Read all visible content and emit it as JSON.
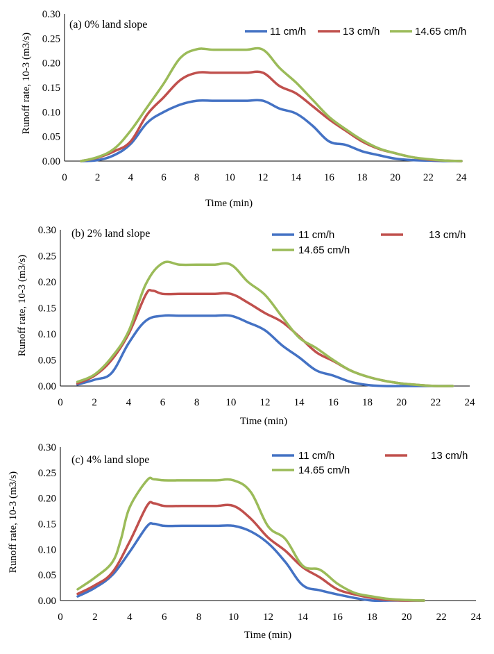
{
  "chart_data": [
    {
      "type": "line",
      "title": "(a) 0% land slope",
      "xlabel": "Time (min)",
      "ylabel": "Runoff rate, 10-3 (m3/s)",
      "xlim": [
        0,
        24
      ],
      "ylim": [
        0,
        0.3
      ],
      "x_ticks": [
        "0",
        "2",
        "4",
        "6",
        "8",
        "10",
        "12",
        "14",
        "16",
        "18",
        "20",
        "22",
        "24"
      ],
      "y_ticks": [
        "0.00",
        "0.05",
        "0.10",
        "0.15",
        "0.20",
        "0.25",
        "0.30"
      ],
      "x_tick_values": [
        0,
        2,
        4,
        6,
        8,
        10,
        12,
        14,
        16,
        18,
        20,
        22,
        24
      ],
      "y_tick_values": [
        0,
        0.05,
        0.1,
        0.15,
        0.2,
        0.25,
        0.3
      ],
      "series": [
        {
          "name": "11 cm/h",
          "color": "#4472C4",
          "x": [
            1,
            2,
            3,
            4,
            5,
            6,
            7,
            8,
            9,
            10,
            11,
            12,
            13,
            14,
            15,
            16,
            17,
            18,
            19,
            20,
            21,
            22,
            23,
            24
          ],
          "values": [
            0.0,
            0.002,
            0.012,
            0.035,
            0.078,
            0.1,
            0.115,
            0.123,
            0.123,
            0.123,
            0.123,
            0.123,
            0.107,
            0.097,
            0.072,
            0.04,
            0.033,
            0.02,
            0.012,
            0.005,
            0.002,
            0.001,
            0.0,
            0.0
          ]
        },
        {
          "name": "13 cm/h",
          "color": "#C0504D",
          "x": [
            1,
            2,
            3,
            4,
            5,
            6,
            7,
            8,
            9,
            10,
            11,
            12,
            13,
            14,
            15,
            16,
            17,
            18,
            19,
            20,
            21,
            22,
            23,
            24
          ],
          "values": [
            0.0,
            0.007,
            0.02,
            0.04,
            0.095,
            0.13,
            0.165,
            0.18,
            0.18,
            0.18,
            0.18,
            0.18,
            0.153,
            0.138,
            0.112,
            0.085,
            0.062,
            0.04,
            0.025,
            0.016,
            0.008,
            0.003,
            0.001,
            0.0
          ]
        },
        {
          "name": "14.65 cm/h",
          "color": "#9BBB59",
          "x": [
            1,
            2,
            3,
            4,
            5,
            6,
            7,
            8,
            9,
            10,
            11,
            12,
            13,
            14,
            15,
            16,
            17,
            18,
            19,
            20,
            21,
            22,
            23,
            24
          ],
          "values": [
            0.0,
            0.008,
            0.025,
            0.062,
            0.11,
            0.158,
            0.21,
            0.228,
            0.227,
            0.227,
            0.227,
            0.227,
            0.19,
            0.16,
            0.125,
            0.09,
            0.065,
            0.043,
            0.026,
            0.016,
            0.008,
            0.004,
            0.001,
            0.0
          ]
        }
      ]
    },
    {
      "type": "line",
      "title": "(b) 2% land slope",
      "xlabel": "Time (min)",
      "ylabel": "Runoff rate, 10-3 (m3/s)",
      "xlim": [
        0,
        24
      ],
      "ylim": [
        0,
        0.3
      ],
      "x_ticks": [
        "0",
        "2",
        "4",
        "6",
        "8",
        "10",
        "12",
        "14",
        "16",
        "18",
        "20",
        "22",
        "24"
      ],
      "y_ticks": [
        "0.00",
        "0.05",
        "0.10",
        "0.15",
        "0.20",
        "0.25",
        "0.30"
      ],
      "x_tick_values": [
        0,
        2,
        4,
        6,
        8,
        10,
        12,
        14,
        16,
        18,
        20,
        22,
        24
      ],
      "y_tick_values": [
        0,
        0.05,
        0.1,
        0.15,
        0.2,
        0.25,
        0.3
      ],
      "series": [
        {
          "name": "11 cm/h",
          "color": "#4472C4",
          "x": [
            1,
            2,
            3,
            4,
            5,
            6,
            7,
            8,
            9,
            10,
            11,
            12,
            13,
            14,
            15,
            16,
            17,
            18,
            19,
            20,
            21,
            22,
            23
          ],
          "values": [
            0.003,
            0.012,
            0.025,
            0.082,
            0.125,
            0.135,
            0.135,
            0.135,
            0.135,
            0.135,
            0.122,
            0.107,
            0.078,
            0.055,
            0.03,
            0.02,
            0.008,
            0.002,
            0.0,
            0.0,
            0.0,
            0.0,
            0.0
          ]
        },
        {
          "name": "13 cm/h",
          "color": "#C0504D",
          "x": [
            1,
            2,
            3,
            4,
            5,
            5.4,
            6,
            7,
            8,
            9,
            10,
            11,
            12,
            13,
            14,
            15,
            16,
            17,
            18,
            19,
            20,
            21,
            22,
            23
          ],
          "values": [
            0.005,
            0.02,
            0.05,
            0.1,
            0.175,
            0.183,
            0.177,
            0.177,
            0.177,
            0.177,
            0.177,
            0.16,
            0.14,
            0.123,
            0.095,
            0.065,
            0.048,
            0.03,
            0.018,
            0.01,
            0.005,
            0.002,
            0.0,
            0.0
          ]
        },
        {
          "name": "14.65 cm/h",
          "color": "#9BBB59",
          "x": [
            1,
            2,
            3,
            4,
            5,
            6,
            7,
            8,
            9,
            10,
            11,
            12,
            13,
            14,
            15,
            16,
            17,
            18,
            19,
            20,
            21,
            22,
            23
          ],
          "values": [
            0.008,
            0.022,
            0.055,
            0.105,
            0.195,
            0.236,
            0.233,
            0.233,
            0.233,
            0.233,
            0.2,
            0.175,
            0.133,
            0.093,
            0.073,
            0.05,
            0.03,
            0.018,
            0.01,
            0.005,
            0.002,
            0.0,
            0.0
          ]
        }
      ]
    },
    {
      "type": "line",
      "title": "(c) 4% land slope",
      "xlabel": "Time (min)",
      "ylabel": "Runoff rate, 10-3 (m3/s)",
      "xlim": [
        0,
        24
      ],
      "ylim": [
        0,
        0.3
      ],
      "x_ticks": [
        "0",
        "2",
        "4",
        "6",
        "8",
        "10",
        "12",
        "14",
        "16",
        "18",
        "20",
        "22",
        "24"
      ],
      "y_ticks": [
        "0.00",
        "0.05",
        "0.10",
        "0.15",
        "0.20",
        "0.25",
        "0.30"
      ],
      "x_tick_values": [
        0,
        2,
        4,
        6,
        8,
        10,
        12,
        14,
        16,
        18,
        20,
        22,
        24
      ],
      "y_tick_values": [
        0,
        0.05,
        0.1,
        0.15,
        0.2,
        0.25,
        0.3
      ],
      "series": [
        {
          "name": "11 cm/h",
          "color": "#4472C4",
          "x": [
            1,
            2,
            3,
            4,
            5,
            5.4,
            6,
            7,
            8,
            9,
            10,
            11,
            12,
            13,
            14,
            15,
            16,
            17,
            18,
            19,
            20,
            21
          ],
          "values": [
            0.008,
            0.025,
            0.05,
            0.095,
            0.145,
            0.15,
            0.146,
            0.146,
            0.146,
            0.146,
            0.146,
            0.135,
            0.112,
            0.075,
            0.03,
            0.02,
            0.012,
            0.005,
            0.0,
            0.0,
            0.0,
            0.0
          ]
        },
        {
          "name": "13 cm/h",
          "color": "#C0504D",
          "x": [
            1,
            2,
            3,
            4,
            5,
            5.4,
            6,
            7,
            8,
            9,
            10,
            11,
            12,
            13,
            14,
            15,
            16,
            17,
            18,
            19,
            20,
            21
          ],
          "values": [
            0.013,
            0.03,
            0.055,
            0.115,
            0.185,
            0.19,
            0.185,
            0.185,
            0.185,
            0.185,
            0.185,
            0.16,
            0.123,
            0.097,
            0.065,
            0.045,
            0.022,
            0.012,
            0.005,
            0.001,
            0.0,
            0.0
          ]
        },
        {
          "name": "14.65 cm/h",
          "color": "#9BBB59",
          "x": [
            1,
            2,
            3,
            3.5,
            4,
            5,
            5.4,
            6,
            7,
            8,
            9,
            10,
            11,
            12,
            13,
            14,
            15,
            16,
            17,
            18,
            19,
            20,
            21
          ],
          "values": [
            0.022,
            0.045,
            0.075,
            0.12,
            0.182,
            0.235,
            0.237,
            0.235,
            0.235,
            0.235,
            0.235,
            0.235,
            0.212,
            0.145,
            0.12,
            0.068,
            0.06,
            0.033,
            0.015,
            0.008,
            0.003,
            0.001,
            0.0
          ]
        }
      ]
    }
  ]
}
